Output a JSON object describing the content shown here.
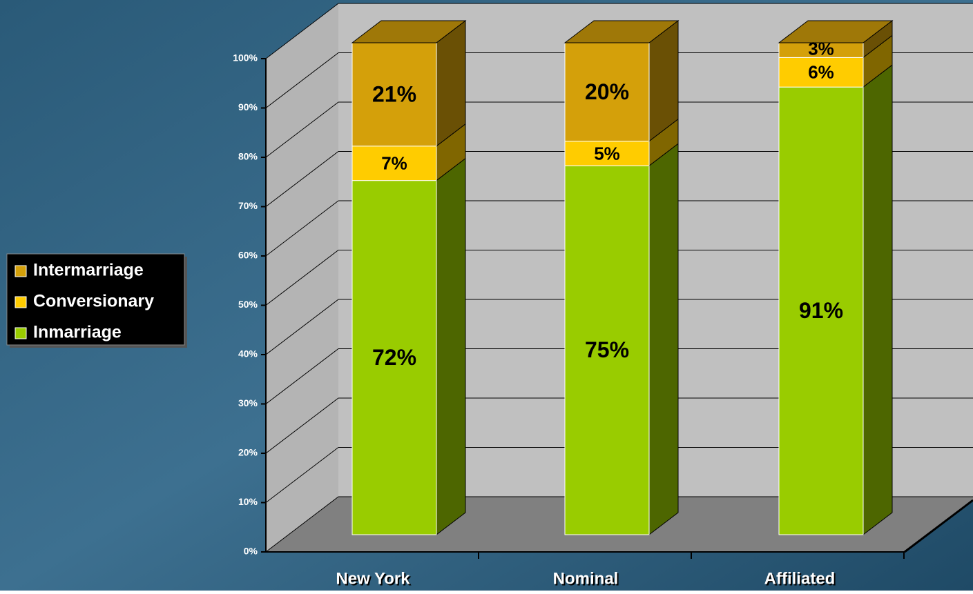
{
  "chart_data": {
    "type": "bar3d-stacked",
    "categories": [
      "New York",
      "Nominal",
      "Affiliated"
    ],
    "series": [
      {
        "name": "Intermarriage",
        "color": "#d4a00a",
        "values": [
          21,
          20,
          3
        ],
        "value_labels": [
          "21%",
          "20%",
          "3%"
        ]
      },
      {
        "name": "Conversionary",
        "color": "#ffcc00",
        "values": [
          7,
          5,
          6
        ],
        "value_labels": [
          "7%",
          "5%",
          "6%"
        ]
      },
      {
        "name": "Inmarriage",
        "color": "#99cc00",
        "values": [
          72,
          75,
          91
        ],
        "value_labels": [
          "72%",
          "75%",
          "91%"
        ]
      }
    ],
    "ylim": [
      0,
      100
    ],
    "yticks": [
      {
        "value": 0,
        "label": "0%"
      },
      {
        "value": 10,
        "label": "10%"
      },
      {
        "value": 20,
        "label": "20%"
      },
      {
        "value": 30,
        "label": "30%"
      },
      {
        "value": 40,
        "label": "40%"
      },
      {
        "value": 50,
        "label": "50%"
      },
      {
        "value": 60,
        "label": "60%"
      },
      {
        "value": 70,
        "label": "70%"
      },
      {
        "value": 80,
        "label": "80%"
      },
      {
        "value": 90,
        "label": "90%"
      },
      {
        "value": 100,
        "label": "100%"
      }
    ],
    "grid": true,
    "legend": "left"
  }
}
